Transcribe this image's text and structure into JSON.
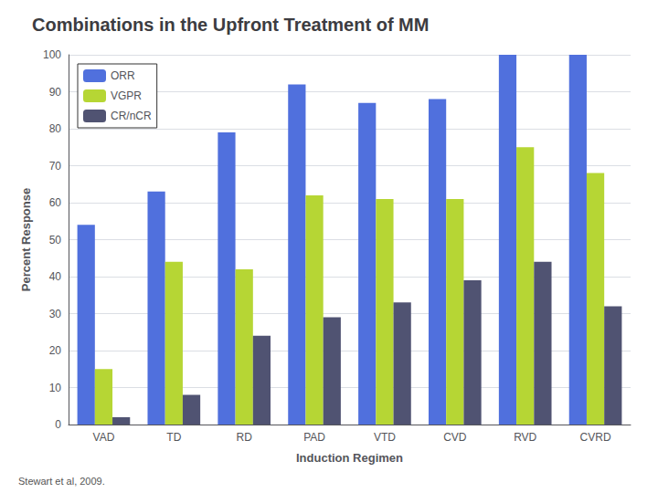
{
  "chart_data": {
    "type": "bar",
    "title": "Combinations in the Upfront Treatment of MM",
    "annotations": [
      "Stewart et al, 2009."
    ],
    "categories": [
      "VAD",
      "TD",
      "RD",
      "PAD",
      "VTD",
      "CVD",
      "RVD",
      "CVRD"
    ],
    "series": [
      {
        "name": "ORR",
        "values": [
          54,
          63,
          79,
          92,
          87,
          88,
          100,
          100
        ]
      },
      {
        "name": "VGPR",
        "values": [
          15,
          44,
          42,
          62,
          61,
          61,
          75,
          68
        ]
      },
      {
        "name": "CR/nCR",
        "values": [
          2,
          8,
          24,
          29,
          33,
          39,
          44,
          32
        ]
      }
    ],
    "xlabel": "Induction Regimen",
    "ylabel": "Percent Response",
    "ylim": [
      0,
      100
    ],
    "yticks": [
      0,
      10,
      20,
      30,
      40,
      50,
      60,
      70,
      80,
      90,
      100
    ],
    "grid": true,
    "legend": "upper left"
  }
}
